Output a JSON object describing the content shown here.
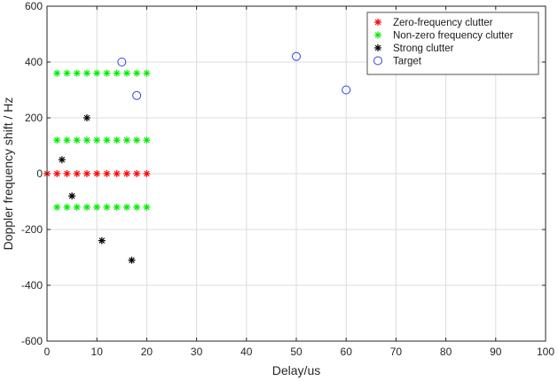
{
  "chart_data": {
    "type": "scatter",
    "title": "",
    "xlabel": "Delay/us",
    "ylabel": "Doppler frequency shift / Hz",
    "xlim": [
      0,
      100
    ],
    "ylim": [
      -600,
      600
    ],
    "xticks": [
      0,
      10,
      20,
      30,
      40,
      50,
      60,
      70,
      80,
      90,
      100
    ],
    "yticks": [
      -600,
      -400,
      -200,
      0,
      200,
      400,
      600
    ],
    "grid": true,
    "legend_position": "top-right",
    "series": [
      {
        "name": "Zero-frequency clutter",
        "marker": "asterisk",
        "color": "#ff0000",
        "points": [
          [
            0,
            0
          ],
          [
            2,
            0
          ],
          [
            4,
            0
          ],
          [
            6,
            0
          ],
          [
            8,
            0
          ],
          [
            10,
            0
          ],
          [
            12,
            0
          ],
          [
            14,
            0
          ],
          [
            16,
            0
          ],
          [
            18,
            0
          ],
          [
            20,
            0
          ]
        ]
      },
      {
        "name": "Non-zero frequency clutter",
        "marker": "asterisk",
        "color": "#00ee00",
        "points": [
          [
            2,
            360
          ],
          [
            4,
            360
          ],
          [
            6,
            360
          ],
          [
            8,
            360
          ],
          [
            10,
            360
          ],
          [
            12,
            360
          ],
          [
            14,
            360
          ],
          [
            16,
            360
          ],
          [
            18,
            360
          ],
          [
            20,
            360
          ],
          [
            2,
            120
          ],
          [
            4,
            120
          ],
          [
            6,
            120
          ],
          [
            8,
            120
          ],
          [
            10,
            120
          ],
          [
            12,
            120
          ],
          [
            14,
            120
          ],
          [
            16,
            120
          ],
          [
            18,
            120
          ],
          [
            20,
            120
          ],
          [
            2,
            -120
          ],
          [
            4,
            -120
          ],
          [
            6,
            -120
          ],
          [
            8,
            -120
          ],
          [
            10,
            -120
          ],
          [
            12,
            -120
          ],
          [
            14,
            -120
          ],
          [
            16,
            -120
          ],
          [
            18,
            -120
          ],
          [
            20,
            -120
          ]
        ]
      },
      {
        "name": "Strong clutter",
        "marker": "asterisk",
        "color": "#000000",
        "points": [
          [
            3,
            50
          ],
          [
            8,
            200
          ],
          [
            5,
            -80
          ],
          [
            11,
            -240
          ],
          [
            17,
            -310
          ]
        ]
      },
      {
        "name": "Target",
        "marker": "circle",
        "color": "#3344dd",
        "points": [
          [
            15,
            400
          ],
          [
            18,
            280
          ],
          [
            50,
            420
          ],
          [
            60,
            300
          ]
        ]
      }
    ]
  }
}
